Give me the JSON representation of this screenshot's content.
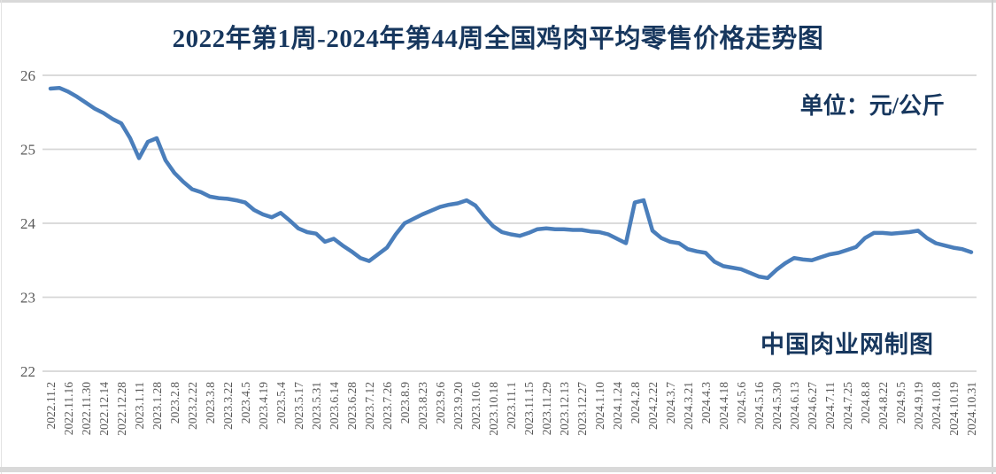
{
  "title": "2022年第1周-2024年第44周全国鸡肉平均零售价格走势图",
  "unit_label": "单位：元/公斤",
  "credit_label": "中国肉业网制图",
  "colors": {
    "line": "#4A7EBB",
    "heading": "#17375E",
    "axis_text": "#595959",
    "gridline": "#D6D6D6"
  },
  "chart_data": {
    "type": "line",
    "title": "2022年第1周-2024年第44周全国鸡肉平均零售价格走势图",
    "ylabel": "元/公斤",
    "ylim": [
      22,
      26
    ],
    "yticks": [
      22,
      23,
      24,
      25,
      26
    ],
    "grid": "horizontal",
    "legend": "none",
    "note": "weekly data; x tick labels mark every second point",
    "x_tick_labels": [
      "2022.11.2",
      "2022.11.16",
      "2022.11.30",
      "2022.12.14",
      "2022.12.28",
      "2023.1.11",
      "2023.1.28",
      "2023.2.8",
      "2023.2.22",
      "2023.3.8",
      "2023.3.22",
      "2023.4.5",
      "2023.4.19",
      "2023.5.4",
      "2023.5.17",
      "2023.5.31",
      "2023.6.14",
      "2023.6.28",
      "2023.7.12",
      "2023.7.26",
      "2023.8.9",
      "2023.8.23",
      "2023.9.6",
      "2023.9.20",
      "2023.10.6",
      "2023.10.18",
      "2023.11.1",
      "2023.11.15",
      "2023.11.29",
      "2023.12.13",
      "2023.12.27",
      "2024.1.10",
      "2024.1.24",
      "2024.2.8",
      "2024.2.22",
      "2024.3.7",
      "2024.3.21",
      "2024.4.3",
      "2024.4.18",
      "2024.5.6",
      "2024.5.16",
      "2024.5.30",
      "2024.6.13",
      "2024.6.27",
      "2024.7.11",
      "2024.7.25",
      "2024.8.8",
      "2024.8.22",
      "2024.9.5",
      "2024.9.19",
      "2024.10.8",
      "2024.10.19",
      "2024.10.31"
    ],
    "series": [
      {
        "name": "全国鸡肉平均零售价格",
        "values": [
          25.82,
          25.83,
          25.78,
          25.71,
          25.63,
          25.55,
          25.49,
          25.41,
          25.35,
          25.15,
          24.88,
          25.1,
          25.15,
          24.85,
          24.68,
          24.56,
          24.46,
          24.42,
          24.36,
          24.34,
          24.33,
          24.31,
          24.28,
          24.18,
          24.12,
          24.08,
          24.14,
          24.04,
          23.93,
          23.88,
          23.86,
          23.75,
          23.79,
          23.7,
          23.62,
          23.53,
          23.49,
          23.58,
          23.67,
          23.85,
          24.0,
          24.06,
          24.12,
          24.17,
          24.22,
          24.25,
          24.27,
          24.31,
          24.24,
          24.09,
          23.96,
          23.88,
          23.85,
          23.83,
          23.87,
          23.92,
          23.93,
          23.92,
          23.92,
          23.91,
          23.91,
          23.89,
          23.88,
          23.85,
          23.79,
          23.73,
          24.28,
          24.31,
          23.9,
          23.8,
          23.75,
          23.73,
          23.65,
          23.62,
          23.6,
          23.48,
          23.42,
          23.4,
          23.38,
          23.33,
          23.28,
          23.26,
          23.37,
          23.46,
          23.53,
          23.51,
          23.5,
          23.54,
          23.58,
          23.6,
          23.64,
          23.68,
          23.8,
          23.87,
          23.87,
          23.86,
          23.87,
          23.88,
          23.9,
          23.8,
          23.73,
          23.7,
          23.67,
          23.65,
          23.61
        ]
      }
    ]
  }
}
